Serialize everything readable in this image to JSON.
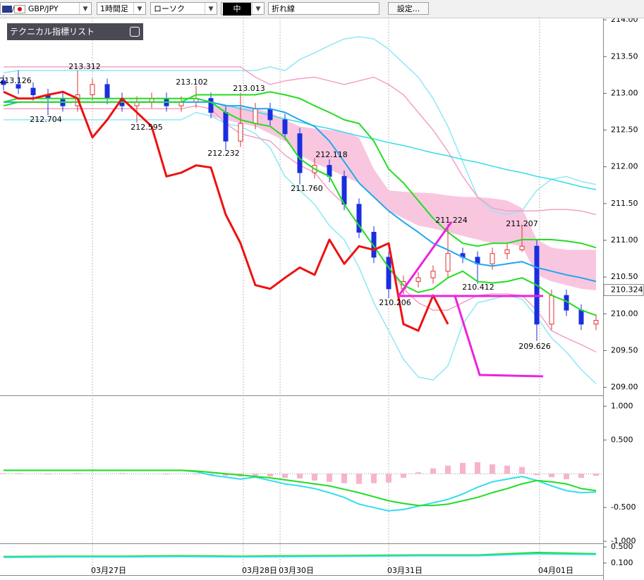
{
  "toolbar": {
    "symbol": "GBP/JPY",
    "timeframe": "1時間足",
    "chart_style": "ローソク",
    "size": "中",
    "line_style": "折れ線",
    "settings": "設定..."
  },
  "indicator_list": "テクニカル指標リスト",
  "chart_data": [
    {
      "type": "candlestick",
      "x": [
        0,
        1,
        2,
        3,
        4,
        5,
        6,
        7,
        8,
        9,
        10,
        11,
        12,
        13,
        14,
        15,
        16,
        17,
        18,
        19,
        20,
        21,
        22,
        23,
        24,
        25,
        26,
        27,
        28,
        29,
        30,
        31,
        32,
        33,
        34,
        35,
        36,
        37,
        38,
        39,
        40
      ],
      "xlim": [
        0,
        40
      ],
      "xticks": [
        {
          "value": 6.0,
          "label": "03月27日"
        },
        {
          "value": 16.19,
          "label": "03月28日"
        },
        {
          "value": 18.67,
          "label": "03月30日"
        },
        {
          "value": 26.0,
          "label": "03月31日"
        },
        {
          "value": 36.19,
          "label": "04月01日"
        }
      ],
      "ylim": [
        208.9,
        214.03
      ],
      "yticks": [
        {
          "value": 214,
          "label": "214.00"
        },
        {
          "value": 213.5,
          "label": "213.50"
        },
        {
          "value": 213,
          "label": "213.00"
        },
        {
          "value": 212.5,
          "label": "212.50"
        },
        {
          "value": 212,
          "label": "212.00"
        },
        {
          "value": 211.5,
          "label": "211.50"
        },
        {
          "value": 211,
          "label": "211.00"
        },
        {
          "value": 210.5,
          "label": "210.50"
        },
        {
          "value": 210,
          "label": "210.00"
        },
        {
          "value": 209.5,
          "label": "209.50"
        },
        {
          "value": 209,
          "label": "209.00"
        }
      ],
      "up_color": "#e03030",
      "down_color": "#1a2ee0",
      "open": [
        213.17,
        213.12,
        213.07,
        212.98,
        212.93,
        212.83,
        212.98,
        213.12,
        212.93,
        212.83,
        212.88,
        212.93,
        212.83,
        212.88,
        212.93,
        212.74,
        212.35,
        212.59,
        212.79,
        212.64,
        212.45,
        211.92,
        212.02,
        211.87,
        211.49,
        211.11,
        210.77,
        210.34,
        210.44,
        210.49,
        210.58,
        210.82,
        210.77,
        210.68,
        210.82,
        210.87,
        210.92,
        209.86,
        210.25,
        210.05,
        209.86
      ],
      "high": [
        213.25,
        213.31,
        213.15,
        213.06,
        213.01,
        213.31,
        213.2,
        213.2,
        213.01,
        212.96,
        213.01,
        213.01,
        212.96,
        213.1,
        213.01,
        212.82,
        213.01,
        212.87,
        212.87,
        212.72,
        212.53,
        212.12,
        212.1,
        211.95,
        211.57,
        211.19,
        210.85,
        210.52,
        210.57,
        210.66,
        211.22,
        210.9,
        210.85,
        210.9,
        210.95,
        211.21,
        211.0,
        210.33,
        210.33,
        210.13,
        209.99
      ],
      "low": [
        213.04,
        212.99,
        212.9,
        212.7,
        212.75,
        212.75,
        212.9,
        212.85,
        212.75,
        212.6,
        212.8,
        212.75,
        212.75,
        212.8,
        212.66,
        212.23,
        212.27,
        212.51,
        212.56,
        212.37,
        211.76,
        211.84,
        211.79,
        211.41,
        211.03,
        210.69,
        210.21,
        210.26,
        210.36,
        210.41,
        210.5,
        210.69,
        210.41,
        210.6,
        210.74,
        210.84,
        209.63,
        209.78,
        209.97,
        209.78,
        209.78
      ],
      "close": [
        213.12,
        213.07,
        212.98,
        212.93,
        212.83,
        212.98,
        213.12,
        212.93,
        212.83,
        212.88,
        212.93,
        212.83,
        212.88,
        212.93,
        212.74,
        212.35,
        212.59,
        212.79,
        212.64,
        212.45,
        211.92,
        212.02,
        211.87,
        211.49,
        211.11,
        210.77,
        210.34,
        210.44,
        210.49,
        210.58,
        210.82,
        210.77,
        210.68,
        210.82,
        210.87,
        210.92,
        209.86,
        210.25,
        210.05,
        209.86,
        209.91
      ],
      "cloud": {
        "color": "#f9c6e0",
        "upper": [
          null,
          null,
          null,
          null,
          null,
          null,
          null,
          null,
          null,
          null,
          null,
          null,
          null,
          null,
          212.83,
          212.83,
          212.81,
          212.79,
          212.74,
          212.64,
          212.55,
          212.52,
          212.5,
          212.48,
          212.4,
          211.97,
          211.68,
          211.66,
          211.65,
          211.64,
          211.61,
          211.59,
          211.59,
          211.57,
          211.54,
          211.44,
          211.01,
          210.9,
          210.87,
          210.87,
          210.87
        ],
        "lower": [
          null,
          null,
          null,
          null,
          null,
          null,
          null,
          null,
          null,
          null,
          null,
          null,
          null,
          null,
          212.69,
          212.64,
          212.59,
          212.55,
          212.45,
          212.35,
          212.16,
          212.05,
          211.97,
          211.87,
          211.78,
          211.59,
          211.4,
          211.3,
          211.2,
          211.16,
          211.11,
          211.06,
          211.01,
          210.96,
          210.96,
          210.92,
          210.53,
          210.44,
          210.39,
          210.34,
          210.32
        ]
      },
      "series": [
        {
          "color": "#8ee8f5",
          "values": [
            213.28,
            213.31,
            213.31,
            213.31,
            213.31,
            213.31,
            213.31,
            213.31,
            213.31,
            213.31,
            213.31,
            213.31,
            213.31,
            213.31,
            213.31,
            213.31,
            213.31,
            213.31,
            213.36,
            213.31,
            213.46,
            213.55,
            213.65,
            213.74,
            213.77,
            213.74,
            213.6,
            213.41,
            213.22,
            212.93,
            212.55,
            212.07,
            211.59,
            211.4,
            211.35,
            211.4,
            211.68,
            211.83,
            211.87,
            211.8,
            211.76
          ]
        },
        {
          "color": "#8ee8f5",
          "values": [
            212.64,
            212.64,
            212.64,
            212.64,
            212.64,
            212.64,
            212.64,
            212.64,
            212.64,
            212.64,
            212.64,
            212.64,
            212.64,
            212.74,
            212.69,
            212.59,
            212.55,
            212.45,
            212.26,
            211.87,
            211.68,
            211.49,
            211.2,
            211.01,
            210.63,
            210.15,
            209.77,
            209.38,
            209.14,
            209.1,
            209.29,
            209.86,
            210.15,
            210.2,
            210.25,
            210.2,
            209.96,
            209.67,
            209.48,
            209.24,
            209.05
          ]
        },
        {
          "color": "#f4a0c6",
          "values": [
            213.36,
            213.36,
            213.36,
            213.36,
            213.36,
            213.36,
            213.36,
            213.36,
            213.36,
            213.36,
            213.36,
            213.36,
            213.36,
            213.36,
            213.36,
            213.36,
            213.36,
            213.22,
            213.12,
            213.17,
            213.2,
            213.22,
            213.17,
            213.12,
            213.17,
            213.22,
            213.12,
            212.98,
            212.74,
            212.5,
            212.21,
            211.87,
            211.59,
            211.44,
            211.4,
            211.4,
            211.4,
            211.42,
            211.42,
            211.4,
            211.35
          ]
        },
        {
          "color": "#f4a0c6",
          "values": [
            212.79,
            212.79,
            212.79,
            212.79,
            212.79,
            212.79,
            212.79,
            212.79,
            212.79,
            212.79,
            212.79,
            212.79,
            212.79,
            212.83,
            212.79,
            212.59,
            212.45,
            212.4,
            212.35,
            212.16,
            212.02,
            211.92,
            211.68,
            211.49,
            211.2,
            210.92,
            210.63,
            210.34,
            210.15,
            210.05,
            210.05,
            210.15,
            210.25,
            210.27,
            210.27,
            210.25,
            210.05,
            209.77,
            209.67,
            209.58,
            209.48
          ]
        },
        {
          "color": "#33dde8",
          "values": [
            null,
            null,
            null,
            null,
            null,
            null,
            null,
            null,
            null,
            null,
            null,
            null,
            null,
            212.93,
            212.88,
            212.84,
            212.79,
            212.75,
            212.7,
            212.65,
            212.61,
            212.56,
            212.52,
            212.47,
            212.42,
            212.38,
            212.33,
            212.29,
            212.24,
            212.19,
            212.15,
            212.1,
            212.06,
            212.01,
            211.96,
            211.92,
            211.87,
            211.83,
            211.78,
            211.73,
            211.69
          ]
        },
        {
          "color": "#1fa8ee",
          "values": [
            212.88,
            212.88,
            212.88,
            212.88,
            212.88,
            212.88,
            212.88,
            212.88,
            212.88,
            212.88,
            212.88,
            212.88,
            212.88,
            212.88,
            212.88,
            212.83,
            212.83,
            212.79,
            212.79,
            212.74,
            212.64,
            212.55,
            212.35,
            212.07,
            211.78,
            211.59,
            211.4,
            211.25,
            211.11,
            210.96,
            210.87,
            210.77,
            210.68,
            210.65,
            210.68,
            210.71,
            210.63,
            210.58,
            210.53,
            210.49,
            210.44
          ]
        },
        {
          "color": "#22dd22",
          "values": [
            212.83,
            212.88,
            212.88,
            212.88,
            212.88,
            212.88,
            212.88,
            212.88,
            212.88,
            212.88,
            212.88,
            212.88,
            212.88,
            212.98,
            212.98,
            212.98,
            212.98,
            212.98,
            213.02,
            212.98,
            212.93,
            212.83,
            212.74,
            212.64,
            212.59,
            212.35,
            211.97,
            211.78,
            211.54,
            211.3,
            211.11,
            210.96,
            210.92,
            210.96,
            210.96,
            211.01,
            211.01,
            211.01,
            210.99,
            210.96,
            210.9
          ]
        },
        {
          "color": "#22dd22",
          "values": [
            212.88,
            212.93,
            212.93,
            212.93,
            212.93,
            212.93,
            212.93,
            212.93,
            212.93,
            212.93,
            212.93,
            212.93,
            212.93,
            212.93,
            212.88,
            212.74,
            212.64,
            212.59,
            212.55,
            212.4,
            212.11,
            211.97,
            211.87,
            211.49,
            211.2,
            210.92,
            210.63,
            210.39,
            210.29,
            210.34,
            210.49,
            210.58,
            210.44,
            210.42,
            210.44,
            210.49,
            210.39,
            210.25,
            210.17,
            210.05,
            209.98
          ]
        },
        {
          "color": "#ee1111",
          "width": 3,
          "values": [
            213.02,
            212.93,
            212.93,
            212.98,
            213.02,
            212.93,
            212.4,
            212.64,
            212.93,
            212.74,
            212.55,
            211.87,
            211.92,
            212.02,
            211.99,
            211.35,
            210.96,
            210.39,
            210.34,
            210.49,
            210.63,
            210.53,
            211.01,
            210.68,
            210.92,
            210.87,
            210.96,
            209.86,
            209.77,
            210.25,
            209.86,
            null,
            null,
            null,
            null,
            null,
            null,
            null,
            null,
            null,
            null
          ]
        }
      ],
      "annotations": [
        "213.126",
        "213.312",
        "212.704",
        "213.102",
        "212.595",
        "213.013",
        "212.232",
        "212.118",
        "211.760",
        "211.224",
        "211.207",
        "210.412",
        "210.206",
        "209.626"
      ],
      "last_price": 210.324
    },
    {
      "type": "line",
      "x": [
        0,
        1,
        2,
        3,
        4,
        5,
        6,
        7,
        8,
        9,
        10,
        11,
        12,
        13,
        14,
        15,
        16,
        17,
        18,
        19,
        20,
        21,
        22,
        23,
        24,
        25,
        26,
        27,
        28,
        29,
        30,
        31,
        32,
        33,
        34,
        35,
        36,
        37,
        38,
        39,
        40
      ],
      "xlim": [
        0,
        40
      ],
      "ylim": [
        -1.02,
        1.15
      ],
      "yticks": [
        {
          "value": 1,
          "label": "1.000"
        },
        {
          "value": 0.5,
          "label": "0.500"
        },
        {
          "value": -0.5,
          "label": "-0.500"
        },
        {
          "value": -1,
          "label": "-1.000"
        }
      ],
      "histogram": {
        "color": "#f7b3cc",
        "values": [
          0.01,
          0.01,
          0,
          -0.01,
          0,
          0.01,
          0,
          0,
          0.01,
          0,
          0,
          -0.01,
          0,
          -0.01,
          -0.02,
          -0.03,
          -0.04,
          -0.03,
          -0.04,
          -0.06,
          -0.07,
          -0.1,
          -0.12,
          -0.14,
          -0.15,
          -0.14,
          -0.13,
          -0.06,
          0.02,
          0.08,
          0.12,
          0.16,
          0.17,
          0.14,
          0.12,
          0.1,
          -0.02,
          -0.05,
          -0.08,
          -0.06,
          -0.03
        ]
      },
      "series": [
        {
          "color": "#33ddee",
          "values": [
            0.05,
            0.05,
            0.05,
            0.05,
            0.05,
            0.05,
            0.05,
            0.05,
            0.05,
            0.05,
            0.05,
            0.05,
            0.05,
            0.03,
            -0.02,
            -0.05,
            -0.08,
            -0.05,
            -0.1,
            -0.15,
            -0.18,
            -0.22,
            -0.28,
            -0.35,
            -0.45,
            -0.5,
            -0.55,
            -0.53,
            -0.48,
            -0.43,
            -0.38,
            -0.3,
            -0.2,
            -0.12,
            -0.08,
            -0.04,
            -0.1,
            -0.18,
            -0.25,
            -0.28,
            -0.27
          ]
        },
        {
          "color": "#22dd22",
          "values": [
            0.05,
            0.05,
            0.05,
            0.05,
            0.05,
            0.05,
            0.05,
            0.05,
            0.05,
            0.05,
            0.05,
            0.05,
            0.05,
            0.04,
            0.02,
            0,
            -0.02,
            -0.04,
            -0.06,
            -0.09,
            -0.12,
            -0.15,
            -0.18,
            -0.23,
            -0.28,
            -0.34,
            -0.4,
            -0.44,
            -0.47,
            -0.47,
            -0.45,
            -0.4,
            -0.35,
            -0.28,
            -0.22,
            -0.15,
            -0.1,
            -0.12,
            -0.15,
            -0.22,
            -0.25
          ]
        }
      ]
    },
    {
      "type": "line",
      "x": [
        0,
        4,
        8,
        12,
        16,
        20,
        24,
        28,
        32,
        36,
        40
      ],
      "xlim": [
        0,
        40
      ],
      "ylim": [
        -0.18,
        0.57
      ],
      "yticks": [
        {
          "value": 0.5,
          "label": "0.500"
        },
        {
          "value": 0.1,
          "label": "0.100"
        }
      ],
      "series": [
        {
          "color": "#22dd22",
          "values": [
            0.26,
            0.27,
            0.27,
            0.28,
            0.27,
            0.28,
            0.29,
            0.3,
            0.3,
            0.36,
            0.33
          ]
        },
        {
          "color": "#33ddee",
          "values": [
            0.24,
            0.25,
            0.25,
            0.26,
            0.25,
            0.26,
            0.27,
            0.28,
            0.28,
            0.33,
            0.31
          ]
        }
      ]
    }
  ]
}
